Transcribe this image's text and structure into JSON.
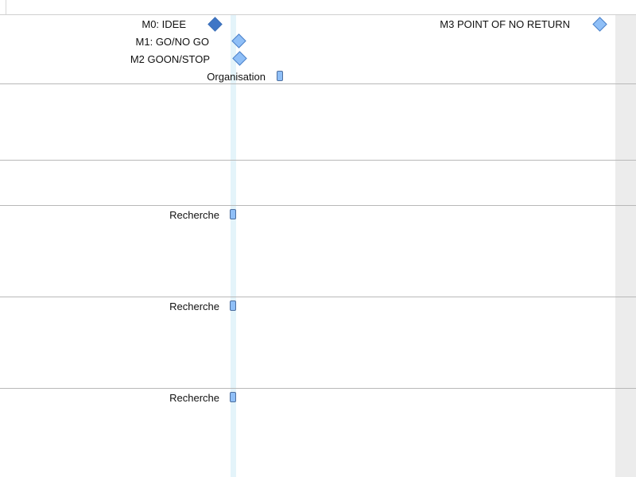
{
  "milestones": [
    {
      "label": "M0: IDEE",
      "state": "filled"
    },
    {
      "label": "M1: GO/NO GO",
      "state": "light"
    },
    {
      "label": "M2 GOON/STOP",
      "state": "light"
    },
    {
      "label": "M3 POINT OF NO RETURN",
      "state": "light"
    }
  ],
  "tasks": [
    {
      "label": "Organisation"
    },
    {
      "label": "Recherche"
    },
    {
      "label": "Recherche"
    },
    {
      "label": "Recherche"
    }
  ],
  "colors": {
    "milestone_filled": "#3f76c6",
    "milestone_light": "#8fbff7",
    "today_line": "#e4f4fa",
    "nonworking_shade": "#ececec",
    "divider": "#b8b8b8"
  }
}
